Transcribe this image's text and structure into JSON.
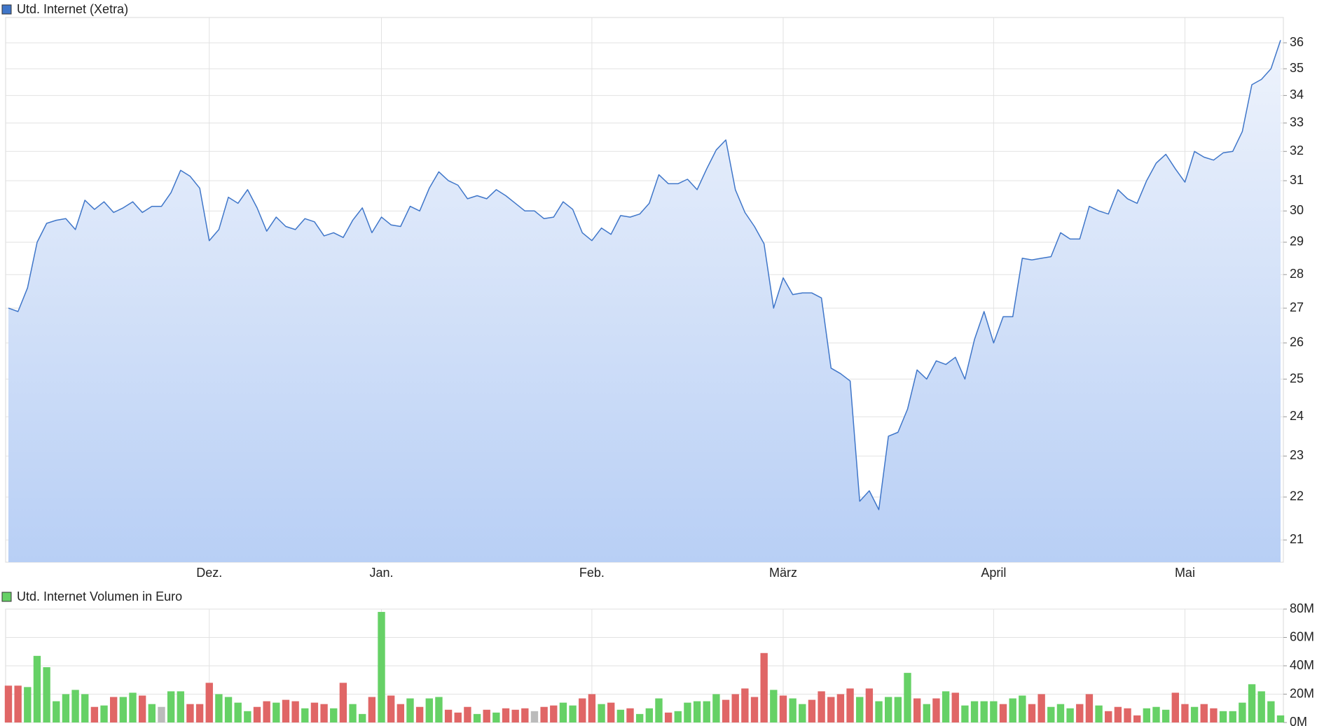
{
  "chart_data": [
    {
      "type": "line",
      "log_scale": true,
      "grid": true,
      "fill_gradient": [
        "#eef3fc",
        "#b8cff5"
      ],
      "categories": [
        null,
        null,
        null,
        null,
        null,
        null,
        null,
        null,
        null,
        null,
        null,
        null,
        null,
        null,
        null,
        null,
        null,
        null,
        null,
        null,
        null,
        "Dez.",
        null,
        null,
        null,
        null,
        null,
        null,
        null,
        null,
        null,
        null,
        null,
        null,
        null,
        null,
        null,
        null,
        null,
        "Jan.",
        null,
        null,
        null,
        null,
        null,
        null,
        null,
        null,
        null,
        null,
        null,
        null,
        null,
        null,
        null,
        null,
        null,
        null,
        null,
        null,
        null,
        "Feb.",
        null,
        null,
        null,
        null,
        null,
        null,
        null,
        null,
        null,
        null,
        null,
        null,
        null,
        null,
        null,
        null,
        null,
        null,
        null,
        "März",
        null,
        null,
        null,
        null,
        null,
        null,
        null,
        null,
        null,
        null,
        null,
        null,
        null,
        null,
        null,
        null,
        null,
        null,
        null,
        null,
        null,
        "April",
        null,
        null,
        null,
        null,
        null,
        null,
        null,
        null,
        null,
        null,
        null,
        null,
        null,
        null,
        null,
        null,
        null,
        null,
        null,
        "Mai",
        null,
        null,
        null,
        null,
        null,
        null,
        null,
        null,
        null,
        null
      ],
      "series": [
        {
          "name": "Utd. Internet (Xetra)",
          "color": "#3f76c9",
          "values": [
            27.0,
            26.9,
            27.6,
            29.0,
            29.6,
            29.7,
            29.75,
            29.4,
            30.35,
            30.05,
            30.3,
            29.95,
            30.1,
            30.3,
            29.95,
            30.15,
            30.15,
            30.6,
            31.35,
            31.15,
            30.75,
            29.05,
            29.4,
            30.45,
            30.25,
            30.7,
            30.1,
            29.35,
            29.8,
            29.5,
            29.4,
            29.75,
            29.65,
            29.2,
            29.3,
            29.15,
            29.7,
            30.1,
            29.3,
            29.8,
            29.55,
            29.5,
            30.15,
            30.0,
            30.75,
            31.3,
            31.0,
            30.85,
            30.4,
            30.5,
            30.4,
            30.7,
            30.5,
            30.25,
            30.0,
            30.0,
            29.75,
            29.8,
            30.3,
            30.05,
            29.3,
            29.05,
            29.45,
            29.25,
            29.85,
            29.8,
            29.9,
            30.25,
            31.2,
            30.9,
            30.9,
            31.05,
            30.7,
            31.4,
            32.05,
            32.4,
            30.7,
            29.95,
            29.5,
            28.95,
            27.0,
            27.9,
            27.4,
            27.45,
            27.45,
            27.3,
            25.3,
            25.15,
            24.95,
            21.9,
            22.15,
            21.7,
            23.5,
            23.6,
            24.2,
            25.25,
            25.0,
            25.5,
            25.4,
            25.6,
            25.0,
            26.1,
            26.9,
            26.0,
            26.75,
            26.75,
            28.5,
            28.45,
            28.5,
            28.55,
            29.3,
            29.1,
            29.1,
            30.15,
            30.0,
            29.9,
            30.7,
            30.4,
            30.25,
            31.0,
            31.6,
            31.9,
            31.4,
            30.95,
            32.0,
            31.8,
            31.7,
            31.95,
            32.0,
            32.7,
            34.4,
            34.6,
            35.0,
            36.1
          ]
        }
      ],
      "ylim": [
        20.5,
        37
      ],
      "yticks": [
        21,
        22,
        23,
        24,
        25,
        26,
        27,
        28,
        29,
        30,
        31,
        32,
        33,
        34,
        35,
        36
      ]
    },
    {
      "type": "bar",
      "grid": true,
      "series": [
        {
          "name": "Utd. Internet Volumen in Euro",
          "color": "#66d166",
          "values": [
            26,
            26,
            25,
            47,
            39,
            15,
            20,
            23,
            20,
            11,
            12,
            18,
            18,
            21,
            19,
            13,
            11,
            22,
            22,
            13,
            13,
            28,
            20,
            18,
            14,
            8,
            11,
            15,
            14,
            16,
            15,
            10,
            14,
            13,
            10,
            28,
            13,
            6,
            18,
            78,
            19,
            13,
            17,
            11,
            17,
            18,
            9,
            7,
            11,
            6,
            9,
            7,
            10,
            9,
            10,
            8,
            11,
            12,
            14,
            12,
            17,
            20,
            13,
            14,
            9,
            10,
            6,
            10,
            17,
            7,
            8,
            14,
            15,
            15,
            20,
            16,
            20,
            24,
            18,
            49,
            23,
            19,
            17,
            13,
            16,
            22,
            18,
            20,
            24,
            18,
            24,
            15,
            18,
            18,
            35,
            17,
            13,
            17,
            22,
            21,
            12,
            15,
            15,
            15,
            13,
            17,
            19,
            13,
            20,
            11,
            13,
            10,
            13,
            20,
            12,
            8,
            11,
            10,
            5,
            10,
            11,
            9,
            21,
            13,
            11,
            13,
            10,
            8,
            8,
            14,
            27,
            22,
            15,
            5
          ],
          "colors": [
            "#e06666",
            "#e06666",
            "#66d166",
            "#66d166",
            "#66d166",
            "#66d166",
            "#66d166",
            "#66d166",
            "#66d166",
            "#e06666",
            "#66d166",
            "#e06666",
            "#66d166",
            "#66d166",
            "#e06666",
            "#66d166",
            "#bbbbbb",
            "#66d166",
            "#66d166",
            "#e06666",
            "#e06666",
            "#e06666",
            "#66d166",
            "#66d166",
            "#66d166",
            "#66d166",
            "#e06666",
            "#e06666",
            "#66d166",
            "#e06666",
            "#e06666",
            "#66d166",
            "#e06666",
            "#e06666",
            "#66d166",
            "#e06666",
            "#66d166",
            "#66d166",
            "#e06666",
            "#66d166",
            "#e06666",
            "#e06666",
            "#66d166",
            "#e06666",
            "#66d166",
            "#66d166",
            "#e06666",
            "#e06666",
            "#e06666",
            "#66d166",
            "#e06666",
            "#66d166",
            "#e06666",
            "#e06666",
            "#e06666",
            "#bbbbbb",
            "#e06666",
            "#e06666",
            "#66d166",
            "#66d166",
            "#e06666",
            "#e06666",
            "#66d166",
            "#e06666",
            "#66d166",
            "#e06666",
            "#66d166",
            "#66d166",
            "#66d166",
            "#e06666",
            "#66d166",
            "#66d166",
            "#66d166",
            "#66d166",
            "#66d166",
            "#e06666",
            "#e06666",
            "#e06666",
            "#e06666",
            "#e06666",
            "#66d166",
            "#e06666",
            "#66d166",
            "#66d166",
            "#e06666",
            "#e06666",
            "#e06666",
            "#e06666",
            "#e06666",
            "#66d166",
            "#e06666",
            "#66d166",
            "#66d166",
            "#66d166",
            "#66d166",
            "#e06666",
            "#66d166",
            "#e06666",
            "#66d166",
            "#e06666",
            "#66d166",
            "#66d166",
            "#66d166",
            "#66d166",
            "#e06666",
            "#66d166",
            "#66d166",
            "#e06666",
            "#e06666",
            "#66d166",
            "#66d166",
            "#66d166",
            "#e06666",
            "#e06666",
            "#66d166",
            "#e06666",
            "#e06666",
            "#e06666",
            "#e06666",
            "#66d166",
            "#66d166",
            "#66d166",
            "#e06666",
            "#e06666",
            "#66d166",
            "#e06666",
            "#e06666",
            "#66d166",
            "#66d166",
            "#66d166",
            "#66d166",
            "#66d166",
            "#66d166",
            "#66d166"
          ]
        }
      ],
      "ylim": [
        0,
        80
      ],
      "yticks": [
        {
          "value": 0,
          "label": "0M"
        },
        {
          "value": 20,
          "label": "20M"
        },
        {
          "value": 40,
          "label": "40M"
        },
        {
          "value": 60,
          "label": "60M"
        },
        {
          "value": 80,
          "label": "80M"
        }
      ]
    }
  ]
}
